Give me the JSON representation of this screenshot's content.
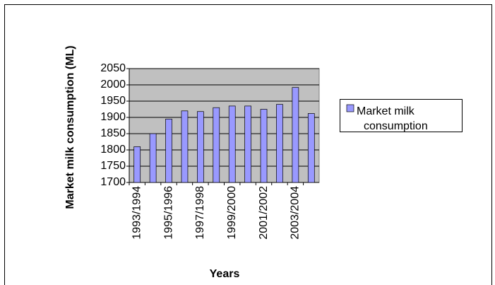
{
  "chart_data": {
    "type": "bar",
    "ylabel": "Market milk consumption (ML)",
    "xlabel": "Years",
    "categories": [
      "1993/1994",
      null,
      "1995/1996",
      null,
      "1997/1998",
      null,
      "1999/2000",
      null,
      "2001/2002",
      null,
      "2003/2004",
      null
    ],
    "series": [
      {
        "name": "Market milk consumption",
        "color": "#9999ff",
        "values": [
          1810,
          1850,
          1895,
          1920,
          1918,
          1930,
          1935,
          1935,
          1925,
          1940,
          1992,
          1912
        ]
      }
    ],
    "ylim": [
      1700,
      2050
    ],
    "yticks": [
      1700,
      1750,
      1800,
      1850,
      1900,
      1950,
      2000,
      2050
    ],
    "grid": true,
    "legend": "right",
    "plot_background": "#c0c0c0"
  }
}
